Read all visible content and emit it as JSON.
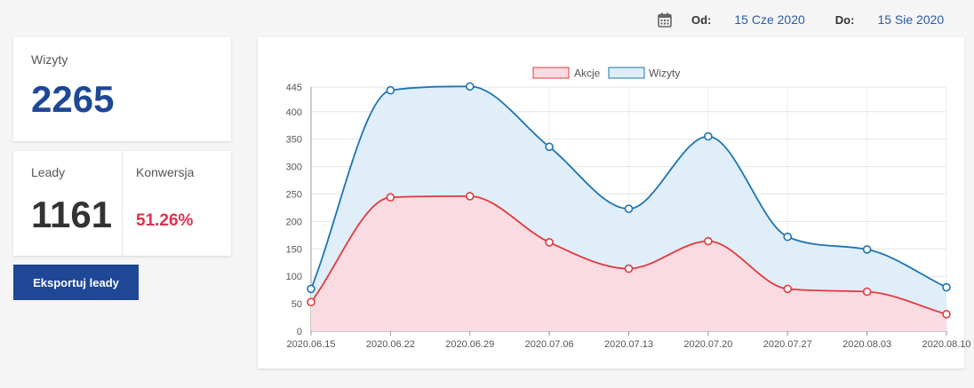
{
  "daterange": {
    "from_label": "Od:",
    "from_value": "15 Cze 2020",
    "to_label": "Do:",
    "to_value": "15 Sie 2020"
  },
  "visits_card": {
    "title": "Wizyty",
    "value": "2265"
  },
  "leads_card": {
    "leads_title": "Leady",
    "leads_value": "1161",
    "conversion_title": "Konwersja",
    "conversion_value": "51.26%"
  },
  "export_button": {
    "label": "Eksportuj leady"
  },
  "colors": {
    "primary": "#1e4796",
    "conversion": "#e2304f",
    "akcje_line": "#e2383d",
    "akcje_fill": "#fadbe1",
    "wizyty_line": "#1b74b3",
    "wizyty_fill": "#dfeef8"
  },
  "chart_data": {
    "type": "area",
    "x": [
      "2020.06.15",
      "2020.06.22",
      "2020.06.29",
      "2020.07.06",
      "2020.07.13",
      "2020.07.20",
      "2020.07.27",
      "2020.08.03",
      "2020.08.10"
    ],
    "y_ticks": [
      0,
      50,
      100,
      150,
      200,
      250,
      300,
      350,
      400,
      445
    ],
    "ylim": [
      0,
      445
    ],
    "grid": true,
    "legend_position": "top",
    "series": [
      {
        "name": "Akcje",
        "values": [
          53,
          244,
          246,
          162,
          114,
          164,
          77,
          72,
          31
        ]
      },
      {
        "name": "Wizyty",
        "values": [
          77,
          439,
          446,
          336,
          223,
          355,
          172,
          149,
          80
        ]
      }
    ]
  }
}
